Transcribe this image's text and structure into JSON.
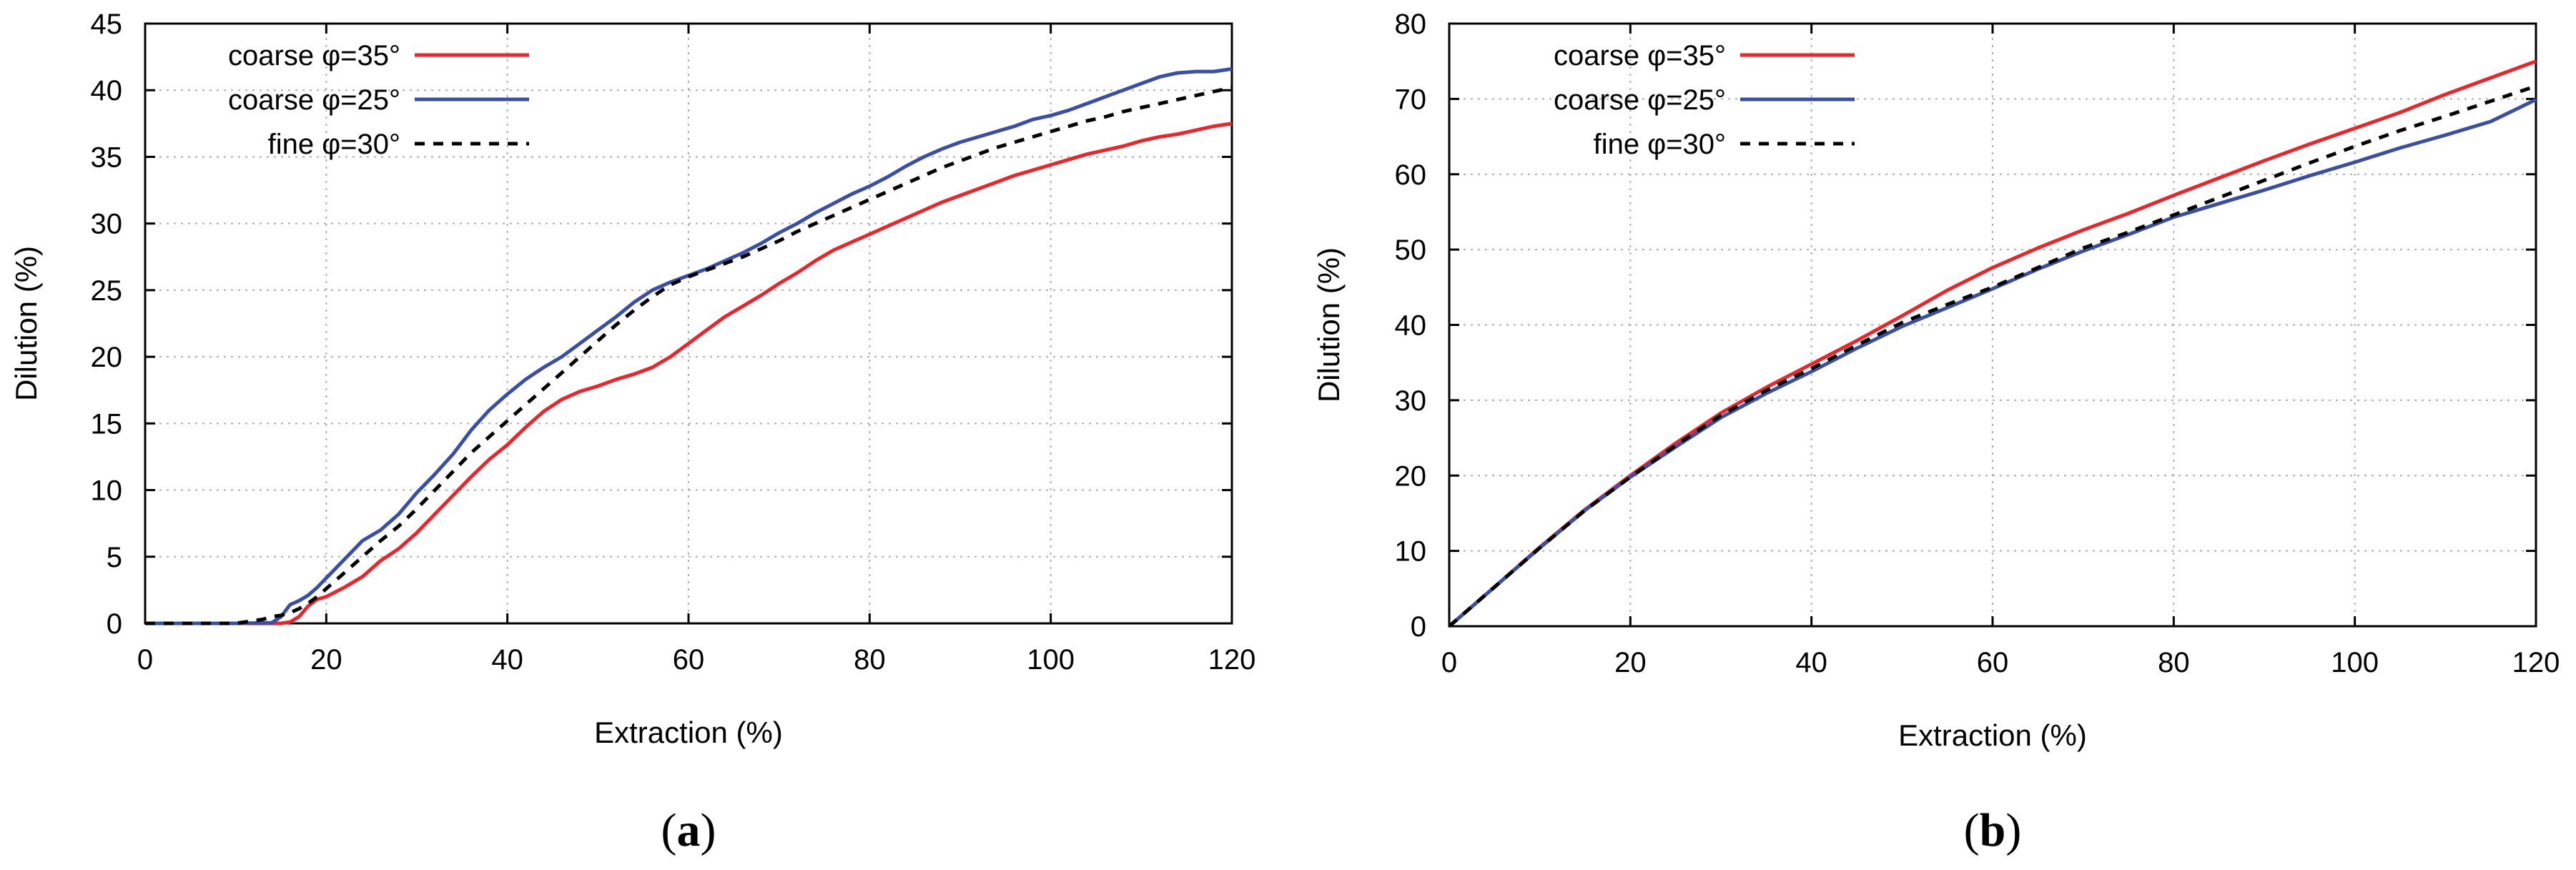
{
  "chart_data": [
    {
      "type": "line",
      "panel_label": {
        "open": "(",
        "letter": "a",
        "close": ")"
      },
      "xlabel": "Extraction (%)",
      "ylabel": "Dilution (%)",
      "xlim": [
        0,
        120
      ],
      "ylim": [
        0,
        45
      ],
      "xticks": [
        0,
        20,
        40,
        60,
        80,
        100,
        120
      ],
      "yticks": [
        0,
        5,
        10,
        15,
        20,
        25,
        30,
        35,
        40,
        45
      ],
      "grid": true,
      "legend_position": "top-left",
      "series": [
        {
          "name": "coarse φ=35°",
          "color": "#e8262b",
          "dash": "solid",
          "x": [
            0,
            10,
            15,
            16,
            17,
            18,
            19,
            20,
            22,
            24,
            26,
            28,
            30,
            32,
            34,
            36,
            38,
            40,
            42,
            44,
            46,
            48,
            50,
            52,
            54,
            56,
            58,
            60,
            62,
            64,
            66,
            68,
            70,
            72,
            74,
            76,
            78,
            80,
            82,
            84,
            86,
            88,
            90,
            92,
            94,
            96,
            98,
            100,
            102,
            104,
            106,
            108,
            110,
            112,
            114,
            116,
            118,
            120
          ],
          "y": [
            0,
            0,
            0,
            0.1,
            0.5,
            1.3,
            1.8,
            2.0,
            2.7,
            3.5,
            4.7,
            5.6,
            6.8,
            8.2,
            9.6,
            11.0,
            12.3,
            13.4,
            14.7,
            15.9,
            16.8,
            17.4,
            17.8,
            18.3,
            18.7,
            19.2,
            20.0,
            21.0,
            22.0,
            23.0,
            23.8,
            24.6,
            25.5,
            26.3,
            27.2,
            28.0,
            28.6,
            29.2,
            29.8,
            30.4,
            31.0,
            31.6,
            32.1,
            32.6,
            33.1,
            33.6,
            34.0,
            34.4,
            34.8,
            35.2,
            35.5,
            35.8,
            36.2,
            36.5,
            36.7,
            37.0,
            37.3,
            37.5
          ]
        },
        {
          "name": "coarse φ=25°",
          "color": "#3a4fa3",
          "dash": "solid",
          "x": [
            0,
            10,
            14,
            15,
            16,
            17,
            18,
            19,
            20,
            22,
            24,
            26,
            28,
            30,
            32,
            34,
            36,
            38,
            40,
            42,
            44,
            46,
            48,
            50,
            52,
            54,
            56,
            58,
            60,
            62,
            64,
            66,
            68,
            70,
            72,
            74,
            76,
            78,
            80,
            82,
            84,
            86,
            88,
            90,
            92,
            94,
            96,
            98,
            100,
            102,
            104,
            106,
            108,
            110,
            112,
            114,
            116,
            118,
            120
          ],
          "y": [
            0,
            0,
            0.05,
            0.5,
            1.4,
            1.7,
            2.1,
            2.7,
            3.4,
            4.8,
            6.2,
            7.0,
            8.2,
            9.8,
            11.2,
            12.7,
            14.5,
            16.0,
            17.2,
            18.3,
            19.2,
            20.0,
            21.0,
            22.0,
            23.0,
            24.1,
            25.0,
            25.6,
            26.1,
            26.6,
            27.2,
            27.8,
            28.5,
            29.3,
            30.0,
            30.8,
            31.5,
            32.2,
            32.8,
            33.5,
            34.3,
            35.0,
            35.6,
            36.1,
            36.5,
            36.9,
            37.3,
            37.8,
            38.1,
            38.5,
            39.0,
            39.5,
            40.0,
            40.5,
            41.0,
            41.3,
            41.4,
            41.4,
            41.6
          ]
        },
        {
          "name": "fine φ=30°",
          "color": "#000000",
          "dash": "dashed",
          "x": [
            0,
            10,
            13,
            14,
            15,
            16,
            17,
            18,
            19,
            20,
            22,
            24,
            26,
            28,
            30,
            32,
            34,
            36,
            38,
            40,
            42,
            44,
            46,
            48,
            50,
            52,
            54,
            56,
            58,
            60,
            62,
            64,
            66,
            68,
            70,
            72,
            74,
            76,
            78,
            80,
            82,
            84,
            86,
            88,
            90,
            92,
            94,
            96,
            98,
            100,
            102,
            104,
            106,
            108,
            110,
            112,
            114,
            116,
            118,
            120
          ],
          "y": [
            0,
            0,
            0.3,
            0.5,
            0.6,
            0.8,
            1.1,
            1.5,
            2.0,
            2.6,
            3.8,
            5.0,
            6.2,
            7.3,
            8.6,
            10.0,
            11.4,
            12.8,
            14.0,
            15.2,
            16.4,
            17.6,
            18.8,
            20.0,
            21.2,
            22.4,
            23.5,
            24.5,
            25.4,
            26.0,
            26.5,
            27.0,
            27.5,
            28.1,
            28.7,
            29.4,
            30.0,
            30.6,
            31.2,
            31.8,
            32.4,
            33.0,
            33.6,
            34.2,
            34.7,
            35.2,
            35.7,
            36.1,
            36.5,
            36.9,
            37.3,
            37.7,
            38.0,
            38.4,
            38.7,
            39.0,
            39.3,
            39.6,
            39.9,
            40.2
          ]
        }
      ]
    },
    {
      "type": "line",
      "panel_label": {
        "open": "(",
        "letter": "b",
        "close": ")"
      },
      "xlabel": "Extraction (%)",
      "ylabel": "Dilution (%)",
      "xlim": [
        0,
        120
      ],
      "ylim": [
        0,
        80
      ],
      "xticks": [
        0,
        20,
        40,
        60,
        80,
        100,
        120
      ],
      "yticks": [
        0,
        10,
        20,
        30,
        40,
        50,
        60,
        70,
        80
      ],
      "grid": true,
      "legend_position": "top-left",
      "series": [
        {
          "name": "coarse φ=35°",
          "color": "#e8262b",
          "dash": "solid",
          "x": [
            0,
            5,
            10,
            15,
            20,
            25,
            30,
            35,
            40,
            45,
            50,
            55,
            60,
            65,
            70,
            75,
            80,
            85,
            90,
            95,
            100,
            105,
            110,
            115,
            120
          ],
          "y": [
            0,
            5.2,
            10.5,
            15.5,
            20.0,
            24.3,
            28.3,
            31.7,
            34.8,
            37.9,
            41.2,
            44.6,
            47.6,
            50.2,
            52.6,
            54.8,
            57.2,
            59.5,
            61.8,
            64.0,
            66.1,
            68.2,
            70.6,
            72.8,
            75.0
          ]
        },
        {
          "name": "coarse φ=25°",
          "color": "#3a4fa3",
          "dash": "solid",
          "x": [
            0,
            5,
            10,
            15,
            20,
            25,
            30,
            35,
            40,
            45,
            50,
            55,
            60,
            65,
            70,
            75,
            80,
            85,
            90,
            95,
            100,
            105,
            110,
            115,
            120
          ],
          "y": [
            0,
            5.2,
            10.4,
            15.4,
            19.8,
            23.8,
            27.7,
            30.9,
            33.8,
            36.9,
            39.8,
            42.3,
            44.8,
            47.4,
            49.8,
            52.0,
            54.3,
            56.1,
            57.9,
            59.8,
            61.6,
            63.5,
            65.2,
            67.0,
            69.9
          ]
        },
        {
          "name": "fine φ=30°",
          "color": "#000000",
          "dash": "dashed",
          "x": [
            0,
            5,
            10,
            15,
            20,
            25,
            30,
            35,
            40,
            45,
            50,
            55,
            60,
            65,
            70,
            75,
            80,
            85,
            90,
            95,
            100,
            105,
            110,
            115,
            120
          ],
          "y": [
            0,
            5.2,
            10.4,
            15.4,
            19.8,
            24.0,
            28.0,
            31.3,
            34.2,
            37.3,
            40.3,
            42.7,
            45.0,
            47.6,
            50.2,
            52.3,
            54.6,
            56.9,
            59.2,
            61.5,
            63.7,
            65.8,
            67.7,
            69.7,
            71.7
          ]
        }
      ]
    }
  ]
}
